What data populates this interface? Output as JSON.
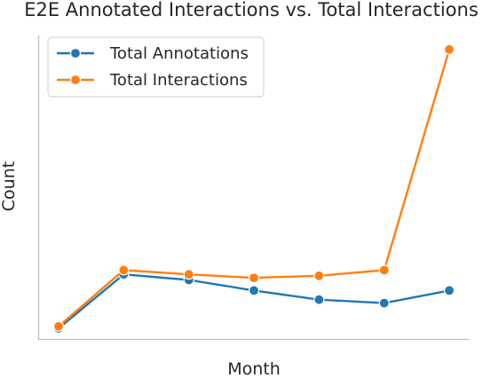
{
  "chart_data": {
    "type": "line",
    "title": "E2E Annotated Interactions vs. Total Interactions",
    "xlabel": "Month",
    "ylabel": "Count",
    "x": [
      1,
      2,
      3,
      4,
      5,
      6,
      7
    ],
    "series": [
      {
        "name": "Total Annotations",
        "color": "#1f77b4",
        "values": [
          3,
          80,
          72,
          57,
          44,
          39,
          57
        ]
      },
      {
        "name": "Total Interactions",
        "color": "#ff7f0e",
        "values": [
          6,
          86,
          80,
          75,
          78,
          86,
          400
        ]
      }
    ],
    "xlim": [
      0.7,
      7.3
    ],
    "ylim": [
      -12,
      420
    ],
    "grid": false,
    "legend": "upper-left",
    "tick_labels_visible": false
  }
}
